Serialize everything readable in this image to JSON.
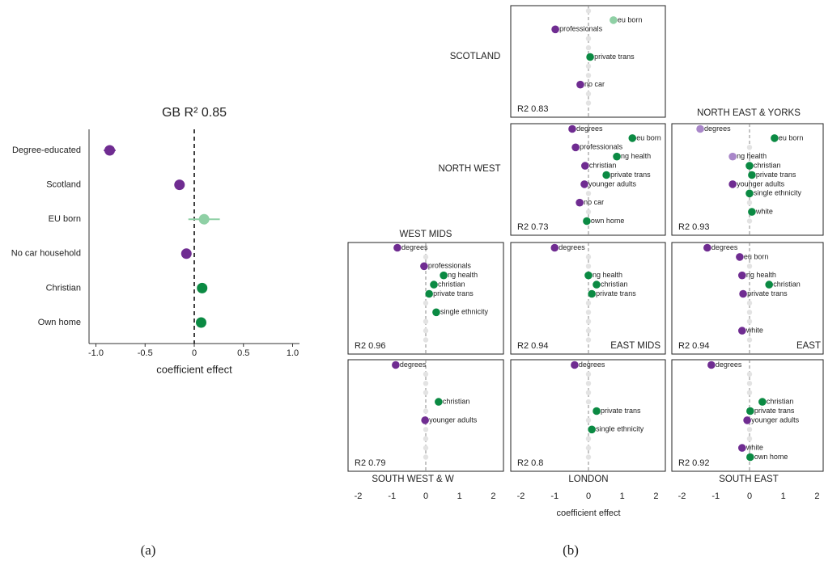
{
  "captions": [
    "(a)",
    "(b)"
  ],
  "chart_data": [
    {
      "type": "dot",
      "title": "GB R² 0.85",
      "xlabel": "coefficient effect",
      "categories": [
        "Degree-educated",
        "Scotland",
        "EU born",
        "No car household",
        "Christian",
        "Own home"
      ],
      "values": [
        -0.86,
        -0.15,
        0.1,
        -0.08,
        0.08,
        0.07
      ],
      "errors": [
        0.06,
        null,
        0.16,
        null,
        null,
        null
      ],
      "colors": [
        "#6f2c91",
        "#6f2c91",
        "#8fd0a5",
        "#6f2c91",
        "#0b8a43",
        "#0b8a43"
      ],
      "xlim": [
        -1.07,
        1.07
      ],
      "xticks": [
        {
          "value": -1,
          "label": "-1.0"
        },
        {
          "value": -0.5,
          "label": "-0.5"
        },
        0,
        {
          "value": 0.5,
          "label": "0.5"
        },
        {
          "value": 1,
          "label": "1.0"
        }
      ],
      "vline": 0
    },
    {
      "type": "dot",
      "title": "SCOTLAND",
      "note": "R2 0.83",
      "xlim": [
        -2.3,
        2.3
      ],
      "vline": 0,
      "categories": [
        null,
        "eu born",
        "professionals",
        null,
        null,
        "private trans",
        null,
        null,
        "no car",
        null,
        null
      ],
      "values": [
        0,
        0.74,
        -0.98,
        0,
        0,
        0.05,
        0,
        0,
        -0.24,
        0,
        0
      ],
      "colors": [
        "#e3e3e3",
        "#8fd0a5",
        "#6f2c91",
        "#e3e3e3",
        "#e3e3e3",
        "#0b8a43",
        "#e3e3e3",
        "#e3e3e3",
        "#6f2c91",
        "#e3e3e3",
        "#e3e3e3"
      ]
    },
    {
      "type": "dot",
      "title": "NORTH WEST",
      "note": "R2 0.73",
      "xlim": [
        -2.3,
        2.3
      ],
      "vline": 0,
      "categories": [
        "degrees",
        "eu born",
        "professionals",
        "ng health",
        "christian",
        "private trans",
        "younger adults",
        null,
        "no car",
        null,
        "own home"
      ],
      "values": [
        -0.48,
        1.3,
        -0.38,
        0.84,
        -0.1,
        0.53,
        -0.12,
        0,
        -0.26,
        0,
        -0.05
      ],
      "colors": [
        "#6f2c91",
        "#0b8a43",
        "#6f2c91",
        "#0b8a43",
        "#6f2c91",
        "#0b8a43",
        "#6f2c91",
        "#e3e3e3",
        "#6f2c91",
        "#e3e3e3",
        "#0b8a43"
      ]
    },
    {
      "type": "dot",
      "title": "NORTH EAST & YORKS",
      "note": "R2 0.93",
      "xlim": [
        -2.3,
        2.3
      ],
      "vline": 0,
      "categories": [
        "degrees",
        "eu born",
        null,
        "ng health",
        "christian",
        "private trans",
        "younger adults",
        "single ethnicity",
        null,
        "white",
        null
      ],
      "values": [
        -1.46,
        0.74,
        0,
        -0.5,
        0,
        0.07,
        -0.5,
        0,
        0,
        0.07,
        0
      ],
      "colors": [
        "#a987c9",
        "#0b8a43",
        "#e3e3e3",
        "#a987c9",
        "#0b8a43",
        "#0b8a43",
        "#6f2c91",
        "#0b8a43",
        "#e3e3e3",
        "#0b8a43",
        "#e3e3e3"
      ]
    },
    {
      "type": "dot",
      "title": "WEST MIDS",
      "note": "R2 0.96",
      "xlim": [
        -2.3,
        2.3
      ],
      "vline": 0,
      "categories": [
        "degrees",
        null,
        "professionals",
        "ng health",
        "christian",
        "private trans",
        null,
        "single ethnicity",
        null,
        null,
        null
      ],
      "values": [
        -0.84,
        0,
        -0.05,
        0.53,
        0.24,
        0.1,
        0,
        0.31,
        0,
        0,
        0
      ],
      "colors": [
        "#6f2c91",
        "#e3e3e3",
        "#6f2c91",
        "#0b8a43",
        "#0b8a43",
        "#0b8a43",
        "#e3e3e3",
        "#0b8a43",
        "#e3e3e3",
        "#e3e3e3",
        "#e3e3e3"
      ]
    },
    {
      "type": "dot",
      "title": "EAST MIDS",
      "note": "R2 0.94",
      "xlim": [
        -2.3,
        2.3
      ],
      "vline": 0,
      "categories": [
        "degrees",
        null,
        null,
        "ng health",
        "christian",
        "private trans",
        null,
        null,
        null,
        null,
        null
      ],
      "values": [
        -1.0,
        0,
        0,
        0,
        0.24,
        0.1,
        0,
        0,
        0,
        0,
        0
      ],
      "colors": [
        "#6f2c91",
        "#e3e3e3",
        "#e3e3e3",
        "#0b8a43",
        "#0b8a43",
        "#0b8a43",
        "#e3e3e3",
        "#e3e3e3",
        "#e3e3e3",
        "#e3e3e3",
        "#e3e3e3"
      ]
    },
    {
      "type": "dot",
      "title": "EAST",
      "note": "R2 0.94",
      "xlim": [
        -2.3,
        2.3
      ],
      "vline": 0,
      "categories": [
        "degrees",
        "eu born",
        null,
        "ng health",
        "christian",
        "private trans",
        null,
        null,
        null,
        "white",
        null
      ],
      "values": [
        -1.25,
        -0.29,
        0,
        -0.22,
        0.58,
        -0.19,
        0,
        0,
        0,
        -0.22,
        0
      ],
      "colors": [
        "#6f2c91",
        "#6f2c91",
        "#e3e3e3",
        "#6f2c91",
        "#0b8a43",
        "#6f2c91",
        "#e3e3e3",
        "#e3e3e3",
        "#e3e3e3",
        "#6f2c91",
        "#e3e3e3"
      ]
    },
    {
      "type": "dot",
      "title": "SOUTH WEST & W",
      "note": "R2 0.79",
      "xlim": [
        -2.3,
        2.3
      ],
      "xticks": [
        -2,
        -1,
        0,
        1,
        2
      ],
      "vline": 0,
      "categories": [
        "degrees",
        null,
        null,
        null,
        "christian",
        null,
        "younger adults",
        null,
        null,
        null,
        null
      ],
      "values": [
        -0.89,
        0,
        0,
        0,
        0.38,
        0,
        -0.02,
        0,
        0,
        0,
        0
      ],
      "colors": [
        "#6f2c91",
        "#e3e3e3",
        "#e3e3e3",
        "#e3e3e3",
        "#0b8a43",
        "#e3e3e3",
        "#6f2c91",
        "#e3e3e3",
        "#e3e3e3",
        "#e3e3e3",
        "#e3e3e3"
      ]
    },
    {
      "type": "dot",
      "title": "LONDON",
      "note": "R2 0.8",
      "xlabel": "coefficient effect",
      "xlim": [
        -2.3,
        2.3
      ],
      "xticks": [
        -2,
        -1,
        0,
        1,
        2
      ],
      "vline": 0,
      "categories": [
        "degrees",
        null,
        null,
        null,
        null,
        "private trans",
        null,
        "single ethnicity",
        null,
        null,
        null
      ],
      "values": [
        -0.41,
        0,
        0,
        0,
        0,
        0.24,
        0,
        0.1,
        0,
        0,
        0
      ],
      "colors": [
        "#6f2c91",
        "#e3e3e3",
        "#e3e3e3",
        "#e3e3e3",
        "#e3e3e3",
        "#0b8a43",
        "#e3e3e3",
        "#0b8a43",
        "#e3e3e3",
        "#e3e3e3",
        "#e3e3e3"
      ]
    },
    {
      "type": "dot",
      "title": "SOUTH EAST",
      "note": "R2 0.92",
      "xlim": [
        -2.3,
        2.3
      ],
      "xticks": [
        -2,
        -1,
        0,
        1,
        2
      ],
      "vline": 0,
      "categories": [
        "degrees",
        null,
        null,
        null,
        "christian",
        "private trans",
        "younger adults",
        null,
        null,
        "white",
        "own home"
      ],
      "values": [
        -1.13,
        0,
        0,
        0,
        0.38,
        0.02,
        -0.07,
        0,
        0,
        -0.22,
        0.02
      ],
      "colors": [
        "#6f2c91",
        "#e3e3e3",
        "#e3e3e3",
        "#e3e3e3",
        "#0b8a43",
        "#0b8a43",
        "#6f2c91",
        "#e3e3e3",
        "#e3e3e3",
        "#6f2c91",
        "#0b8a43"
      ]
    }
  ]
}
